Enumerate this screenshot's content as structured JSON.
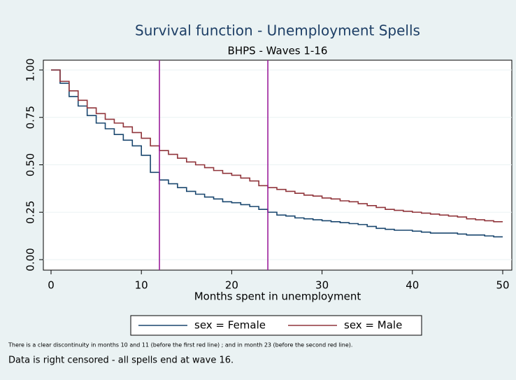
{
  "chart_data": {
    "type": "step",
    "title": "Survival function - Unemployment Spells",
    "subtitle": "BHPS - Waves 1-16",
    "x_label": "Months spent in unemployment",
    "x": [
      0,
      1,
      2,
      3,
      4,
      5,
      6,
      7,
      8,
      9,
      10,
      11,
      12,
      13,
      14,
      15,
      16,
      17,
      18,
      19,
      20,
      21,
      22,
      23,
      24,
      25,
      26,
      27,
      28,
      29,
      30,
      31,
      32,
      33,
      34,
      35,
      36,
      37,
      38,
      39,
      40,
      41,
      42,
      43,
      44,
      45,
      46,
      47,
      48,
      49,
      50
    ],
    "series": [
      {
        "name": "sex = Female",
        "color": "#1a476f",
        "values": [
          1.0,
          0.93,
          0.86,
          0.81,
          0.76,
          0.72,
          0.69,
          0.66,
          0.63,
          0.6,
          0.55,
          0.46,
          0.42,
          0.4,
          0.38,
          0.36,
          0.345,
          0.33,
          0.32,
          0.305,
          0.3,
          0.29,
          0.28,
          0.265,
          0.25,
          0.235,
          0.23,
          0.22,
          0.215,
          0.21,
          0.205,
          0.2,
          0.195,
          0.19,
          0.185,
          0.175,
          0.165,
          0.16,
          0.155,
          0.155,
          0.15,
          0.145,
          0.14,
          0.14,
          0.14,
          0.135,
          0.13,
          0.13,
          0.125,
          0.12,
          0.12
        ]
      },
      {
        "name": "sex = Male",
        "color": "#90353b",
        "values": [
          1.0,
          0.94,
          0.89,
          0.84,
          0.8,
          0.77,
          0.74,
          0.72,
          0.7,
          0.67,
          0.64,
          0.6,
          0.575,
          0.555,
          0.535,
          0.515,
          0.5,
          0.485,
          0.47,
          0.455,
          0.445,
          0.43,
          0.415,
          0.39,
          0.38,
          0.37,
          0.36,
          0.35,
          0.34,
          0.335,
          0.325,
          0.32,
          0.31,
          0.305,
          0.295,
          0.285,
          0.275,
          0.265,
          0.26,
          0.255,
          0.25,
          0.245,
          0.24,
          0.235,
          0.23,
          0.225,
          0.215,
          0.21,
          0.205,
          0.2,
          0.2
        ]
      }
    ],
    "vlines": [
      12,
      24
    ],
    "vline_color": "#9b1f9b",
    "xlim": [
      0,
      50
    ],
    "xticks": [
      0,
      10,
      20,
      30,
      40,
      50
    ],
    "ylim": [
      0,
      1
    ],
    "yticks": [
      {
        "value": 0,
        "label": "0.00"
      },
      {
        "value": 0.25,
        "label": "0.25"
      },
      {
        "value": 0.5,
        "label": "0.50"
      },
      {
        "value": 0.75,
        "label": "0.75"
      },
      {
        "value": 1,
        "label": "1.00"
      }
    ],
    "grid": true,
    "legend": "bottom",
    "notes": [
      "There is a clear discontinuity in months 10 and 11 (before the first red line) ; and in month 23 (before the second red line).",
      "Data is right censored - all spells end at wave 16."
    ]
  }
}
